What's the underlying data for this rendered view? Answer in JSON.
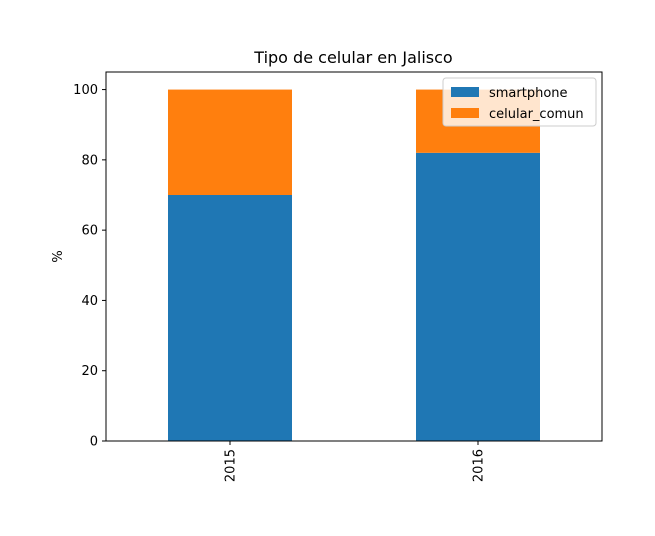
{
  "chart_data": {
    "type": "bar",
    "stacked": true,
    "title": "Tipo de celular en Jalisco",
    "xlabel": "",
    "ylabel": "%",
    "categories": [
      "2015",
      "2016"
    ],
    "series": [
      {
        "name": "smartphone",
        "values": [
          70,
          82
        ],
        "color": "#1f77b4"
      },
      {
        "name": "celular_comun",
        "values": [
          30,
          18
        ],
        "color": "#ff7f0e"
      }
    ],
    "ylim": [
      0,
      105
    ],
    "yticks": [
      0,
      20,
      40,
      60,
      80,
      100
    ],
    "grid": false,
    "legend_position": "top-right"
  }
}
